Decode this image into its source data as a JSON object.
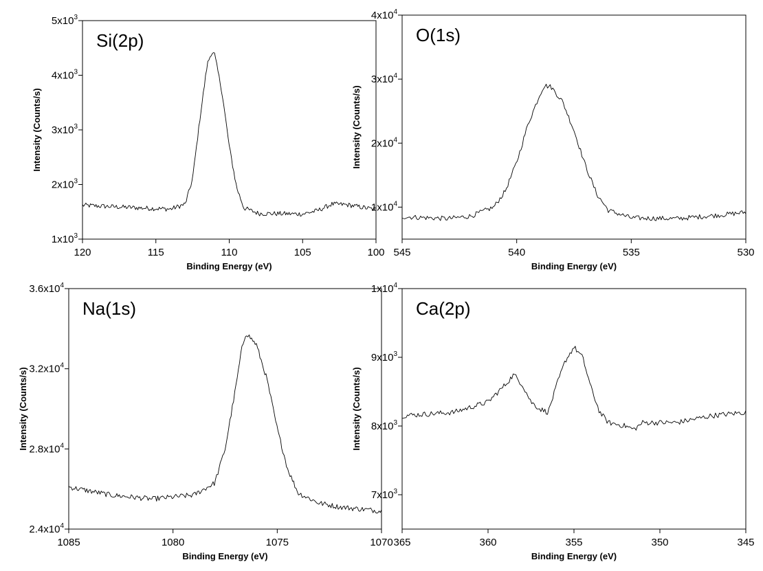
{
  "chart_data": [
    {
      "type": "line",
      "title": "Si(2p)",
      "xlabel": "Binding Energy (eV)",
      "ylabel": "Intensity (Counts/s)",
      "xlim": [
        120,
        100
      ],
      "ylim": [
        1000,
        5000
      ],
      "x_reversed": true,
      "x_ticks": [
        120,
        115,
        110,
        105,
        100
      ],
      "x_tick_labels": [
        "120",
        "115",
        "110",
        "105",
        "100"
      ],
      "y_ticks": [
        {
          "value": 1000,
          "mant": "1x10",
          "exp": "3"
        },
        {
          "value": 2000,
          "mant": "2x10",
          "exp": "3"
        },
        {
          "value": 3000,
          "mant": "3x10",
          "exp": "3"
        },
        {
          "value": 4000,
          "mant": "4x10",
          "exp": "3"
        },
        {
          "value": 5000,
          "mant": "5x10",
          "exp": "3"
        }
      ],
      "series": [
        {
          "x": [
            120,
            116,
            114,
            113,
            112.5,
            112,
            111.5,
            111.2,
            111,
            110.5,
            110,
            109.5,
            109,
            108,
            105,
            104,
            103,
            102,
            100
          ],
          "values": [
            1620,
            1570,
            1550,
            1640,
            2100,
            3200,
            4200,
            4420,
            4380,
            3700,
            2700,
            1950,
            1570,
            1470,
            1460,
            1520,
            1640,
            1630,
            1540
          ]
        }
      ]
    },
    {
      "type": "line",
      "title": "O(1s)",
      "xlabel": "Binding Energy (eV)",
      "ylabel": "Intensity (Counts/s)",
      "xlim": [
        545,
        530
      ],
      "ylim": [
        5000,
        40000
      ],
      "x_reversed": true,
      "x_ticks": [
        545,
        540,
        535,
        530
      ],
      "x_tick_labels": [
        "545",
        "540",
        "535",
        "530"
      ],
      "y_ticks": [
        {
          "value": 10000,
          "mant": "1x10",
          "exp": "4"
        },
        {
          "value": 20000,
          "mant": "2x10",
          "exp": "4"
        },
        {
          "value": 30000,
          "mant": "3x10",
          "exp": "4"
        },
        {
          "value": 40000,
          "mant": "4x10",
          "exp": "4"
        }
      ],
      "series": [
        {
          "x": [
            545,
            543,
            542,
            541,
            540.5,
            540,
            539.5,
            539,
            538.8,
            538.5,
            538,
            537.5,
            537,
            536.5,
            536,
            535,
            533,
            531,
            530
          ],
          "values": [
            8500,
            8200,
            8600,
            10000,
            12500,
            17000,
            23000,
            27500,
            29000,
            28800,
            26500,
            22000,
            16500,
            12000,
            9500,
            8300,
            8200,
            8800,
            9200
          ]
        }
      ]
    },
    {
      "type": "line",
      "title": "Na(1s)",
      "xlabel": "Binding Energy (eV)",
      "ylabel": "Intensity (Counts/s)",
      "xlim": [
        1085,
        1070
      ],
      "ylim": [
        24000,
        36000
      ],
      "x_reversed": true,
      "x_ticks": [
        1085,
        1080,
        1075,
        1070
      ],
      "x_tick_labels": [
        "1085",
        "1080",
        "1075",
        "1070"
      ],
      "y_ticks": [
        {
          "value": 24000,
          "mant": "2.4x10",
          "exp": "4"
        },
        {
          "value": 28000,
          "mant": "2.8x10",
          "exp": "4"
        },
        {
          "value": 32000,
          "mant": "3.2x10",
          "exp": "4"
        },
        {
          "value": 36000,
          "mant": "3.6x10",
          "exp": "4"
        }
      ],
      "series": [
        {
          "x": [
            1085,
            1083,
            1081,
            1079,
            1078,
            1077.5,
            1077,
            1076.7,
            1076.5,
            1076,
            1075.5,
            1075,
            1074.5,
            1074,
            1073,
            1072,
            1070
          ],
          "values": [
            26100,
            25700,
            25500,
            25700,
            26300,
            28000,
            31000,
            33000,
            33800,
            33200,
            31500,
            29000,
            27000,
            25800,
            25300,
            25100,
            24900
          ]
        }
      ]
    },
    {
      "type": "line",
      "title": "Ca(2p)",
      "xlabel": "Binding Energy (eV)",
      "ylabel": "Intensity (Counts/s)",
      "xlim": [
        365,
        345
      ],
      "ylim": [
        6500,
        10000
      ],
      "x_reversed": true,
      "x_ticks": [
        365,
        360,
        355,
        350,
        345
      ],
      "x_tick_labels": [
        "365",
        "360",
        "355",
        "350",
        "345"
      ],
      "y_ticks": [
        {
          "value": 7000,
          "mant": "7x10",
          "exp": "3"
        },
        {
          "value": 8000,
          "mant": "8x10",
          "exp": "3"
        },
        {
          "value": 9000,
          "mant": "9x10",
          "exp": "3"
        },
        {
          "value": 10000,
          "mant": "1x10",
          "exp": "4"
        }
      ],
      "series": [
        {
          "x": [
            365,
            362,
            360,
            359,
            358.5,
            358,
            357.5,
            357,
            356.5,
            356,
            355.5,
            355,
            354.5,
            354,
            353.5,
            353,
            352,
            351.5,
            351,
            349,
            347,
            345
          ],
          "values": [
            8150,
            8200,
            8350,
            8600,
            8750,
            8600,
            8350,
            8250,
            8200,
            8600,
            8950,
            9150,
            9000,
            8550,
            8200,
            8050,
            8000,
            7950,
            8050,
            8050,
            8150,
            8200
          ]
        }
      ]
    }
  ]
}
